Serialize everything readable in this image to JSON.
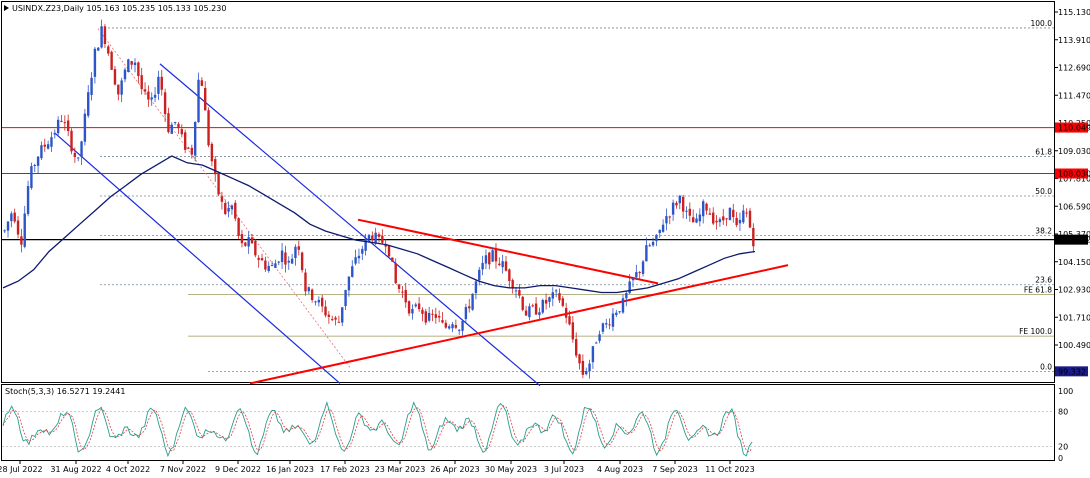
{
  "header": {
    "symbol_line": "USINDX.Z23,Daily  105.163 105.235 105.133 105.230",
    "stoch_label": "Stoch(5,3,3) 16.5271 19.2441"
  },
  "colors": {
    "bull": "#2b55c9",
    "bear": "#cc1f1f",
    "ma": "#0d1a6e",
    "channel": "#1a2ae0",
    "triangle": "#ff0000",
    "hline_red": "#ff0000",
    "price_line": "#000000",
    "fib": "#7a8a99",
    "fe": "#9a9a5a",
    "stoch_main": "#2a9d8f",
    "stoch_signal": "#e04040"
  },
  "chart_data": {
    "type": "candlestick",
    "y_axis_ticks": [
      "115.130",
      "113.910",
      "112.690",
      "111.470",
      "110.250",
      "109.030",
      "107.810",
      "106.590",
      "105.370",
      "104.150",
      "102.930",
      "101.710",
      "100.490"
    ],
    "x_axis_ticks": [
      "28 Jul 2022",
      "31 Aug 2022",
      "4 Oct 2022",
      "7 Nov 2022",
      "9 Dec 2022",
      "16 Jan 2023",
      "17 Feb 2023",
      "23 Mar 2023",
      "26 Apr 2023",
      "30 May 2023",
      "3 Jul 2023",
      "4 Aug 2023",
      "7 Sep 2023",
      "11 Oct 2023"
    ],
    "price_labels": [
      {
        "label": "110.049",
        "value": 110.049,
        "bg": "#ff0000"
      },
      {
        "label": "108.030",
        "value": 108.03,
        "bg": "#ff0000"
      },
      {
        "label": "105.122",
        "value": 105.122,
        "bg": "#000000"
      },
      {
        "label": "99.332",
        "value": 99.332,
        "bg": "#1a1a8a"
      }
    ],
    "fib_levels": [
      {
        "label": "100.0",
        "value": 114.43
      },
      {
        "label": "61.8",
        "value": 108.78
      },
      {
        "label": "50.0",
        "value": 107.04
      },
      {
        "label": "38.2",
        "value": 105.3
      },
      {
        "label": "23.6",
        "value": 103.14
      },
      {
        "label": "0.0",
        "value": 99.332
      }
    ],
    "fe_levels": [
      {
        "label": "FE 61.8",
        "value": 102.71
      },
      {
        "label": "FE 100.0",
        "value": 100.88
      }
    ],
    "horizontal_lines": [
      110.049,
      108.03,
      105.122
    ],
    "price_path": [
      105.5,
      106.5,
      105.0,
      107.8,
      108.8,
      109.3,
      109.8,
      110.5,
      109.5,
      108.4,
      110.8,
      113.2,
      114.43,
      113.0,
      111.5,
      112.8,
      113.0,
      111.5,
      111.0,
      112.5,
      110.0,
      110.3,
      109.3,
      109.0,
      112.8,
      109.5,
      107.5,
      106.3,
      106.6,
      104.8,
      105.0,
      104.4,
      104.0,
      103.9,
      104.6,
      104.0,
      105.2,
      102.9,
      102.6,
      102.1,
      101.7,
      101.4,
      103.2,
      104.1,
      104.8,
      105.4,
      105.0,
      105.1,
      103.2,
      102.7,
      101.9,
      102.2,
      101.6,
      101.8,
      101.2,
      101.6,
      101.3,
      102.2,
      103.3,
      104.2,
      104.4,
      104.1,
      103.5,
      102.9,
      101.9,
      102.0,
      102.2,
      102.5,
      102.7,
      101.8,
      100.5,
      99.2,
      99.8,
      101.2,
      101.4,
      102.0,
      102.3,
      103.2,
      103.8,
      104.8,
      105.0,
      106.0,
      106.5,
      107.0,
      106.0,
      105.8,
      106.7,
      106.1,
      105.8,
      106.5,
      105.5,
      106.5,
      105.1
    ],
    "ma_path": [
      103.0,
      103.3,
      103.8,
      104.6,
      105.2,
      105.8,
      106.4,
      107.0,
      107.5,
      108.0,
      108.4,
      108.8,
      108.5,
      108.4,
      108.1,
      107.8,
      107.5,
      107.1,
      106.7,
      106.3,
      105.8,
      105.5,
      105.3,
      105.1,
      105.0,
      104.9,
      104.7,
      104.5,
      104.2,
      103.9,
      103.6,
      103.3,
      103.1,
      103.0,
      103.0,
      103.1,
      103.1,
      103.0,
      102.9,
      102.8,
      102.8,
      102.9,
      103.0,
      103.2,
      103.4,
      103.7,
      104.0,
      104.3,
      104.5,
      104.6
    ],
    "stoch_axis_ticks": [
      "100",
      "80",
      "20",
      "0"
    ]
  }
}
